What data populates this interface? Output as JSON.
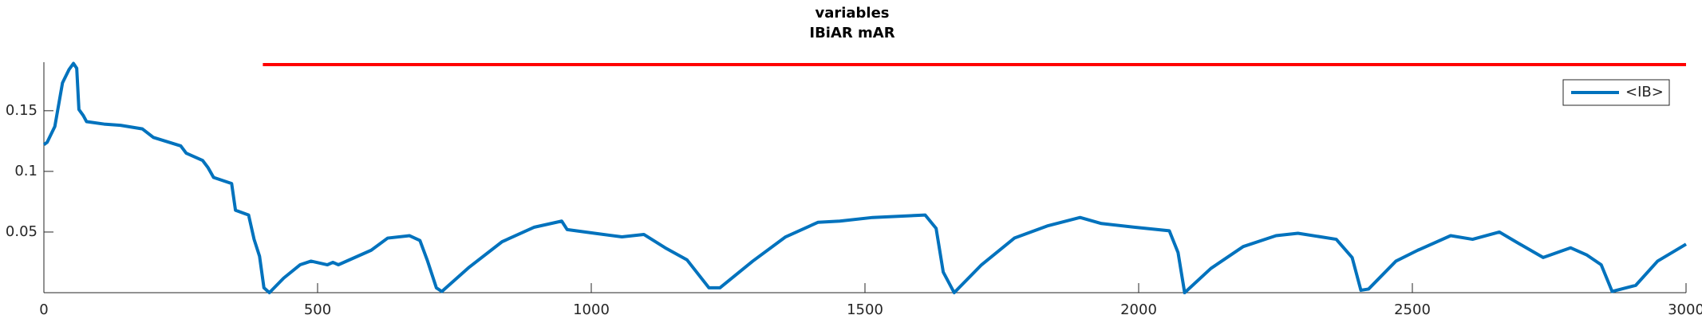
{
  "chart_data": {
    "type": "line",
    "title": "variables",
    "subtitle": "IBiAR mAR",
    "x": [
      0,
      6,
      20,
      34,
      46,
      54,
      60,
      64,
      72,
      78,
      110,
      140,
      180,
      200,
      250,
      260,
      290,
      300,
      310,
      343,
      350,
      374,
      384,
      394,
      402,
      412,
      438,
      468,
      488,
      518,
      528,
      538,
      598,
      628,
      668,
      687,
      701,
      717,
      727,
      777,
      837,
      896,
      946,
      956,
      1006,
      1056,
      1096,
      1135,
      1175,
      1215,
      1235,
      1295,
      1355,
      1414,
      1454,
      1514,
      1610,
      1630,
      1643,
      1663,
      1713,
      1773,
      1833,
      1893,
      1932,
      1992,
      2056,
      2072,
      2084,
      2132,
      2191,
      2251,
      2291,
      2361,
      2390,
      2406,
      2420,
      2470,
      2510,
      2570,
      2610,
      2659,
      2689,
      2739,
      2789,
      2819,
      2845,
      2865,
      2908,
      2948,
      3000
    ],
    "series": [
      {
        "name": "<IB>",
        "color": "#0072bd",
        "values": [
          0.122,
          0.124,
          0.137,
          0.173,
          0.184,
          0.189,
          0.185,
          0.151,
          0.146,
          0.141,
          0.139,
          0.138,
          0.135,
          0.128,
          0.121,
          0.115,
          0.109,
          0.103,
          0.095,
          0.09,
          0.068,
          0.064,
          0.044,
          0.03,
          0.004,
          0.0,
          0.012,
          0.023,
          0.026,
          0.023,
          0.025,
          0.023,
          0.035,
          0.045,
          0.047,
          0.043,
          0.026,
          0.004,
          0.001,
          0.021,
          0.042,
          0.054,
          0.059,
          0.052,
          0.049,
          0.046,
          0.048,
          0.037,
          0.027,
          0.004,
          0.004,
          0.026,
          0.046,
          0.058,
          0.059,
          0.062,
          0.064,
          0.053,
          0.017,
          0.0,
          0.023,
          0.045,
          0.055,
          0.062,
          0.057,
          0.054,
          0.051,
          0.033,
          0.0,
          0.02,
          0.038,
          0.047,
          0.049,
          0.044,
          0.029,
          0.002,
          0.003,
          0.026,
          0.035,
          0.047,
          0.044,
          0.05,
          0.042,
          0.029,
          0.037,
          0.031,
          0.023,
          0.001,
          0.006,
          0.026,
          0.04
        ]
      }
    ],
    "reference_line": {
      "x": [
        400,
        3000
      ],
      "values": [
        0.188,
        0.188
      ],
      "color": "#ff0000"
    },
    "xlim": [
      0,
      3000
    ],
    "xticks": [
      0,
      500,
      1000,
      1500,
      2000,
      2500,
      3000
    ],
    "ylim": [
      0,
      0.19
    ],
    "yticks": [
      0.05,
      0.1,
      0.15
    ],
    "legend": "top-right"
  }
}
